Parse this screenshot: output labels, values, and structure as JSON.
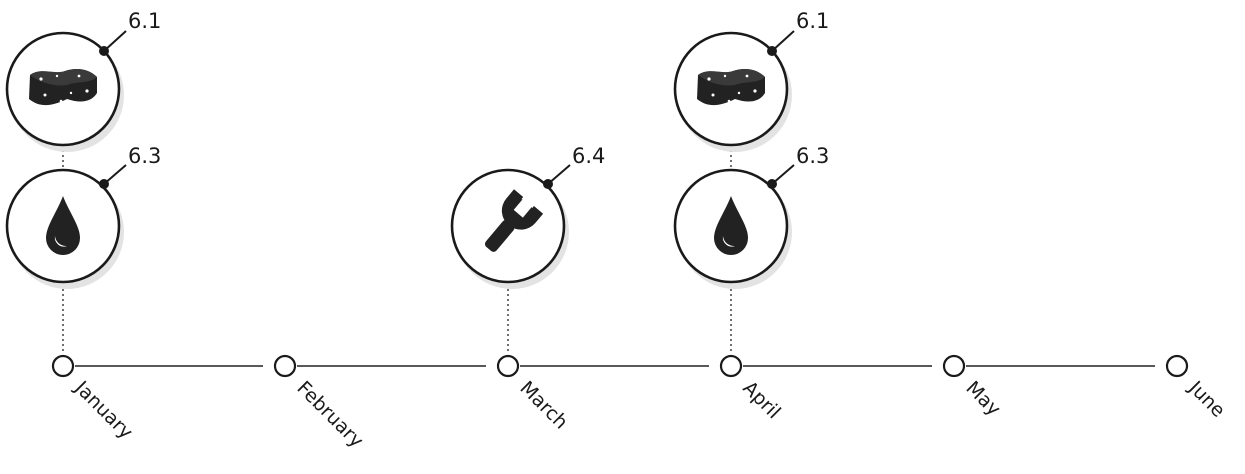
{
  "months": [
    {
      "label": "January"
    },
    {
      "label": "February"
    },
    {
      "label": "March"
    },
    {
      "label": "April"
    },
    {
      "label": "May"
    },
    {
      "label": "June"
    }
  ],
  "events": [
    {
      "month": "January",
      "icon": "sponge-icon",
      "label": "6.1"
    },
    {
      "month": "January",
      "icon": "water-drop-icon",
      "label": "6.3"
    },
    {
      "month": "March",
      "icon": "wrench-icon",
      "label": "6.4"
    },
    {
      "month": "April",
      "icon": "sponge-icon",
      "label": "6.1"
    },
    {
      "month": "April",
      "icon": "water-drop-icon",
      "label": "6.3"
    }
  ],
  "colors": {
    "ink": "#1a1a1a",
    "line": "#222222",
    "shadow": "#e3e3e3",
    "background": "#ffffff"
  }
}
